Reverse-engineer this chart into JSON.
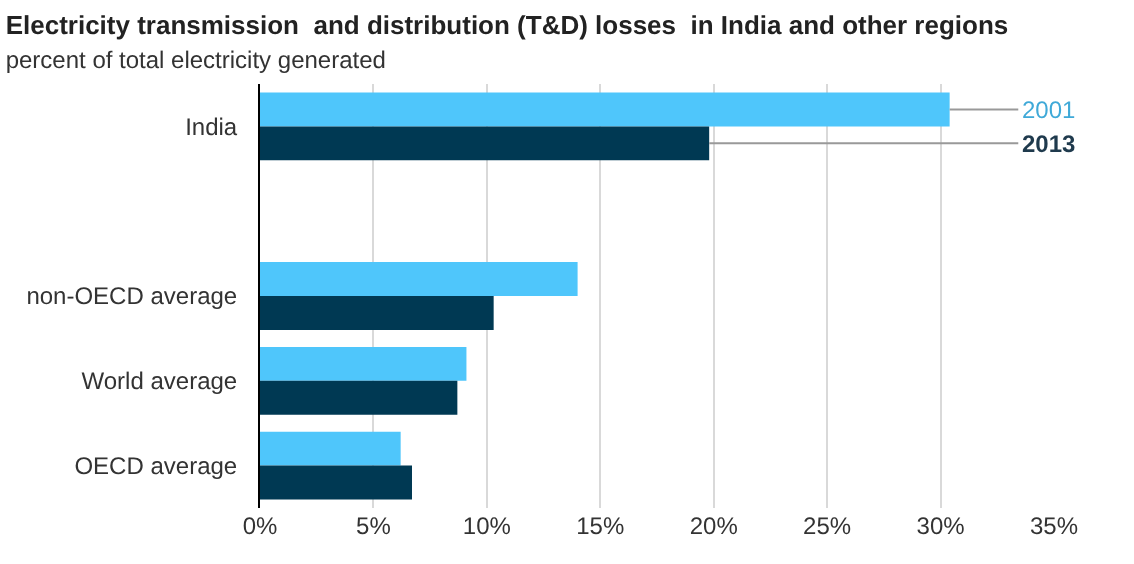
{
  "chart_data": {
    "type": "bar",
    "orientation": "horizontal",
    "title": "Electricity transmission  and distribution (T&D) losses  in India and other regions",
    "subtitle": "percent of total electricity generated",
    "categories": [
      "India",
      null,
      "non-OECD average",
      "World average",
      "OECD average"
    ],
    "series": [
      {
        "name": "2001",
        "color": "#4fc6fb",
        "values": [
          30.4,
          null,
          14.0,
          9.1,
          6.2
        ]
      },
      {
        "name": "2013",
        "color": "#003953",
        "values": [
          19.8,
          null,
          10.3,
          8.7,
          6.7
        ]
      }
    ],
    "xlim": [
      0,
      35
    ],
    "xticks": [
      {
        "value": 0,
        "label": "0%"
      },
      {
        "value": 5,
        "label": "5%"
      },
      {
        "value": 10,
        "label": "10%"
      },
      {
        "value": 15,
        "label": "15%"
      },
      {
        "value": 20,
        "label": "20%"
      },
      {
        "value": 25,
        "label": "25%"
      },
      {
        "value": 30,
        "label": "30%"
      },
      {
        "value": 35,
        "label": "35%"
      }
    ],
    "grid": "x",
    "legend": false
  }
}
